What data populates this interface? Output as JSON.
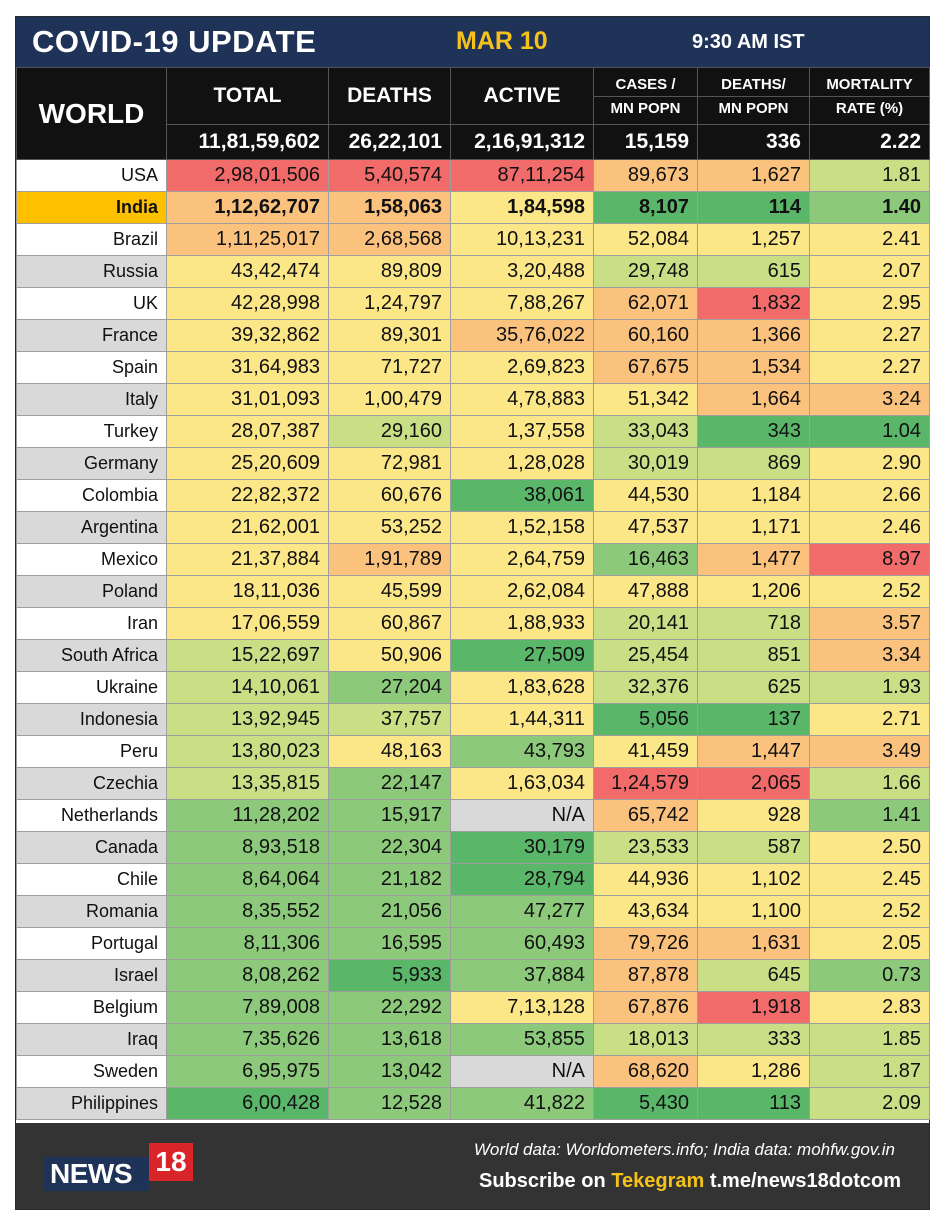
{
  "header": {
    "title": "COVID-19 UPDATE",
    "date": "MAR 10",
    "time": "9:30 AM IST"
  },
  "columns": {
    "world": "WORLD",
    "total": "TOTAL",
    "deaths": "DEATHS",
    "active": "ACTIVE",
    "cases_mn_1": "CASES /",
    "cases_mn_2": "MN POPN",
    "deaths_mn_1": "DEATHS/",
    "deaths_mn_2": "MN POPN",
    "mort_1": "MORTALITY",
    "mort_2": "RATE (%)"
  },
  "world_totals": {
    "total": "11,81,59,602",
    "deaths": "26,22,101",
    "active": "2,16,91,312",
    "cases_mn": "15,159",
    "deaths_mn": "336",
    "mortality": "2.22"
  },
  "colors": {
    "dark_green": "#5ab76a",
    "green": "#8cc97a",
    "yellow_green": "#c8df86",
    "yellow": "#fbe688",
    "orange": "#fbc27e",
    "red": "#f26b6b",
    "na": "#d9d9d9",
    "highlight": "#ffc000",
    "header_bg": "#1f3257"
  },
  "rows": [
    {
      "country": "USA",
      "total": "2,98,01,506",
      "deaths": "5,40,574",
      "active": "87,11,254",
      "cases_mn": "89,673",
      "deaths_mn": "1,627",
      "mortality": "1.81"
    },
    {
      "country": "India",
      "total": "1,12,62,707",
      "deaths": "1,58,063",
      "active": "1,84,598",
      "cases_mn": "8,107",
      "deaths_mn": "114",
      "mortality": "1.40"
    },
    {
      "country": "Brazil",
      "total": "1,11,25,017",
      "deaths": "2,68,568",
      "active": "10,13,231",
      "cases_mn": "52,084",
      "deaths_mn": "1,257",
      "mortality": "2.41"
    },
    {
      "country": "Russia",
      "total": "43,42,474",
      "deaths": "89,809",
      "active": "3,20,488",
      "cases_mn": "29,748",
      "deaths_mn": "615",
      "mortality": "2.07"
    },
    {
      "country": "UK",
      "total": "42,28,998",
      "deaths": "1,24,797",
      "active": "7,88,267",
      "cases_mn": "62,071",
      "deaths_mn": "1,832",
      "mortality": "2.95"
    },
    {
      "country": "France",
      "total": "39,32,862",
      "deaths": "89,301",
      "active": "35,76,022",
      "cases_mn": "60,160",
      "deaths_mn": "1,366",
      "mortality": "2.27"
    },
    {
      "country": "Spain",
      "total": "31,64,983",
      "deaths": "71,727",
      "active": "2,69,823",
      "cases_mn": "67,675",
      "deaths_mn": "1,534",
      "mortality": "2.27"
    },
    {
      "country": "Italy",
      "total": "31,01,093",
      "deaths": "1,00,479",
      "active": "4,78,883",
      "cases_mn": "51,342",
      "deaths_mn": "1,664",
      "mortality": "3.24"
    },
    {
      "country": "Turkey",
      "total": "28,07,387",
      "deaths": "29,160",
      "active": "1,37,558",
      "cases_mn": "33,043",
      "deaths_mn": "343",
      "mortality": "1.04"
    },
    {
      "country": "Germany",
      "total": "25,20,609",
      "deaths": "72,981",
      "active": "1,28,028",
      "cases_mn": "30,019",
      "deaths_mn": "869",
      "mortality": "2.90"
    },
    {
      "country": "Colombia",
      "total": "22,82,372",
      "deaths": "60,676",
      "active": "38,061",
      "cases_mn": "44,530",
      "deaths_mn": "1,184",
      "mortality": "2.66"
    },
    {
      "country": "Argentina",
      "total": "21,62,001",
      "deaths": "53,252",
      "active": "1,52,158",
      "cases_mn": "47,537",
      "deaths_mn": "1,171",
      "mortality": "2.46"
    },
    {
      "country": "Mexico",
      "total": "21,37,884",
      "deaths": "1,91,789",
      "active": "2,64,759",
      "cases_mn": "16,463",
      "deaths_mn": "1,477",
      "mortality": "8.97"
    },
    {
      "country": "Poland",
      "total": "18,11,036",
      "deaths": "45,599",
      "active": "2,62,084",
      "cases_mn": "47,888",
      "deaths_mn": "1,206",
      "mortality": "2.52"
    },
    {
      "country": "Iran",
      "total": "17,06,559",
      "deaths": "60,867",
      "active": "1,88,933",
      "cases_mn": "20,141",
      "deaths_mn": "718",
      "mortality": "3.57"
    },
    {
      "country": "South Africa",
      "total": "15,22,697",
      "deaths": "50,906",
      "active": "27,509",
      "cases_mn": "25,454",
      "deaths_mn": "851",
      "mortality": "3.34"
    },
    {
      "country": "Ukraine",
      "total": "14,10,061",
      "deaths": "27,204",
      "active": "1,83,628",
      "cases_mn": "32,376",
      "deaths_mn": "625",
      "mortality": "1.93"
    },
    {
      "country": "Indonesia",
      "total": "13,92,945",
      "deaths": "37,757",
      "active": "1,44,311",
      "cases_mn": "5,056",
      "deaths_mn": "137",
      "mortality": "2.71"
    },
    {
      "country": "Peru",
      "total": "13,80,023",
      "deaths": "48,163",
      "active": "43,793",
      "cases_mn": "41,459",
      "deaths_mn": "1,447",
      "mortality": "3.49"
    },
    {
      "country": "Czechia",
      "total": "13,35,815",
      "deaths": "22,147",
      "active": "1,63,034",
      "cases_mn": "1,24,579",
      "deaths_mn": "2,065",
      "mortality": "1.66"
    },
    {
      "country": "Netherlands",
      "total": "11,28,202",
      "deaths": "15,917",
      "active": "N/A",
      "cases_mn": "65,742",
      "deaths_mn": "928",
      "mortality": "1.41"
    },
    {
      "country": "Canada",
      "total": "8,93,518",
      "deaths": "22,304",
      "active": "30,179",
      "cases_mn": "23,533",
      "deaths_mn": "587",
      "mortality": "2.50"
    },
    {
      "country": "Chile",
      "total": "8,64,064",
      "deaths": "21,182",
      "active": "28,794",
      "cases_mn": "44,936",
      "deaths_mn": "1,102",
      "mortality": "2.45"
    },
    {
      "country": "Romania",
      "total": "8,35,552",
      "deaths": "21,056",
      "active": "47,277",
      "cases_mn": "43,634",
      "deaths_mn": "1,100",
      "mortality": "2.52"
    },
    {
      "country": "Portugal",
      "total": "8,11,306",
      "deaths": "16,595",
      "active": "60,493",
      "cases_mn": "79,726",
      "deaths_mn": "1,631",
      "mortality": "2.05"
    },
    {
      "country": "Israel",
      "total": "8,08,262",
      "deaths": "5,933",
      "active": "37,884",
      "cases_mn": "87,878",
      "deaths_mn": "645",
      "mortality": "0.73"
    },
    {
      "country": "Belgium",
      "total": "7,89,008",
      "deaths": "22,292",
      "active": "7,13,128",
      "cases_mn": "67,876",
      "deaths_mn": "1,918",
      "mortality": "2.83"
    },
    {
      "country": "Iraq",
      "total": "7,35,626",
      "deaths": "13,618",
      "active": "53,855",
      "cases_mn": "18,013",
      "deaths_mn": "333",
      "mortality": "1.85"
    },
    {
      "country": "Sweden",
      "total": "6,95,975",
      "deaths": "13,042",
      "active": "N/A",
      "cases_mn": "68,620",
      "deaths_mn": "1,286",
      "mortality": "1.87"
    },
    {
      "country": "Philippines",
      "total": "6,00,428",
      "deaths": "12,528",
      "active": "41,822",
      "cases_mn": "5,430",
      "deaths_mn": "113",
      "mortality": "2.09"
    }
  ],
  "footer": {
    "logo_text": "NEWS",
    "logo_number": "18",
    "source": "World data: Worldometers.info; India data: mohfw.gov.in",
    "subscribe_prefix": "Subscribe on",
    "subscribe_app": "Tekegram",
    "subscribe_link": "t.me/news18dotcom"
  }
}
